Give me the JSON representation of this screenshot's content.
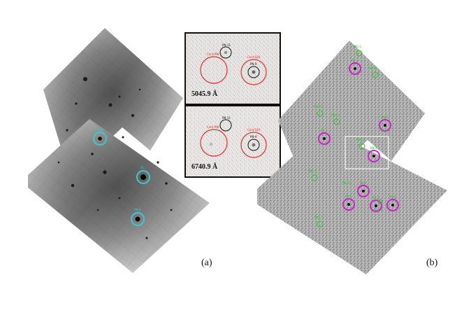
{
  "panel_a": {
    "label": "(a)",
    "sources": [
      {
        "tag": "PN-A"
      },
      {
        "tag": "S1"
      },
      {
        "tag": "PN-B"
      }
    ]
  },
  "insets": [
    {
      "wavelength": "5045.9 Å",
      "circle_labels": [
        "PN-11",
        "Cont-PNt",
        "PN-9",
        "Cont-S10"
      ]
    },
    {
      "wavelength": "6740.9 Å",
      "circle_labels": [
        "PN-11",
        "Cont-PNt",
        "PN-9",
        "Cont-S10"
      ]
    }
  ],
  "panel_b": {
    "label": "(b)",
    "pn_labels": [
      "PN-1",
      "PN-2",
      "PN-3",
      "PN-4",
      "PN-5",
      "PN-6",
      "PN-7",
      "PN-8",
      "PN-9",
      "PN-10"
    ],
    "candidate_labels": [
      "PNC-1",
      "PNC-2",
      "PNC-3",
      "PNC-4",
      "PNC-5",
      "PNC-6",
      "PNC-7",
      "PNC-8"
    ]
  },
  "colors": {
    "pn_circle": "#d020d0",
    "candidate": "#22cc22",
    "source_circle": "#3fc7d0",
    "aperture_red": "#e03030",
    "aperture_black": "#111111",
    "zoom_box": "#f4f4f4"
  }
}
